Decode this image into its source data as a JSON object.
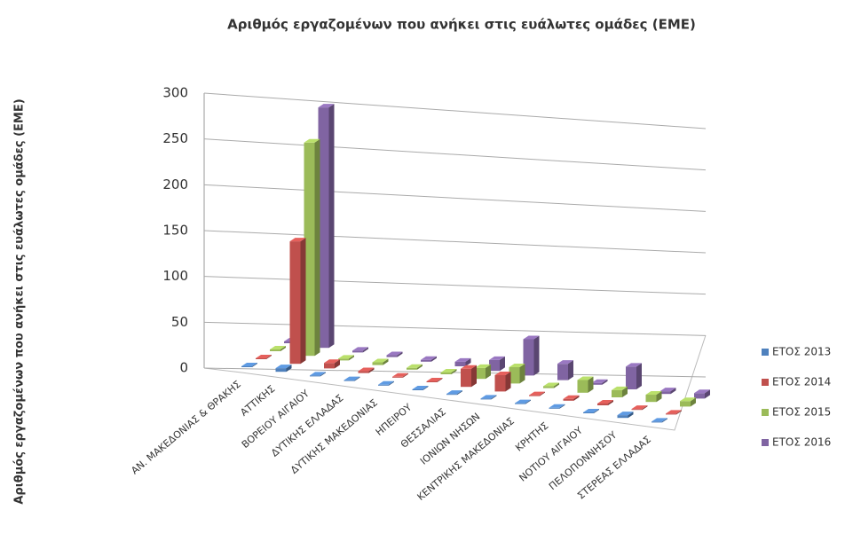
{
  "chart_data": {
    "type": "bar3d",
    "title": "Αριθμός εργαζομένων που ανήκει στις ευάλωτες ομάδες (ΕΜΕ)",
    "y_label": "Αριθμός εργαζομένων που ανήκει στις ευάλωτες ομάδες (ΕΜΕ)",
    "categories": [
      "ΑΝ. ΜΑΚΕΔΟΝΙΑΣ & ΘΡΑΚΗΣ",
      "ΑΤΤΙΚΗΣ",
      "ΒΟΡΕΙΟΥ ΑΙΓΑΙΟΥ",
      "ΔΥΤΙΚΗΣ ΕΛΛΑΔΑΣ",
      "ΔΥΤΙΚΗΣ ΜΑΚΕΔΟΝΙΑΣ",
      "ΗΠΕΙΡΟΥ",
      "ΘΕΣΣΑΛΙΑΣ",
      "ΙΟΝΙΩΝ ΝΗΣΩΝ",
      "ΚΕΝΤΡΙΚΗΣ ΜΑΚΕΔΟΝΙΑΣ",
      "ΚΡΗΤΗΣ",
      "ΝΟΤΙΟΥ ΑΙΓΑΙΟΥ",
      "ΠΕΛΟΠΟΝΝΗΣΟΥ",
      "ΣΤΕΡΕΑΣ ΕΛΛΑΔΑΣ"
    ],
    "series": [
      {
        "name": "ΕΤΟΣ 2013",
        "color": "#4f81bd",
        "values": [
          1,
          4,
          1,
          1,
          1,
          1,
          1,
          1,
          1,
          1,
          1,
          3,
          1
        ]
      },
      {
        "name": "ΕΤΟΣ 2014",
        "color": "#c0504d",
        "values": [
          1,
          135,
          6,
          2,
          1,
          1,
          20,
          18,
          1,
          2,
          2,
          1,
          1
        ]
      },
      {
        "name": "ΕΤΟΣ 2015",
        "color": "#9bbb59",
        "values": [
          2,
          235,
          2,
          3,
          2,
          2,
          12,
          18,
          2,
          14,
          8,
          8,
          6
        ]
      },
      {
        "name": "ΕΤΟΣ 2016",
        "color": "#8064a2",
        "values": [
          2,
          265,
          2,
          2,
          2,
          5,
          12,
          40,
          18,
          2,
          25,
          3,
          6
        ]
      }
    ],
    "ylim": [
      0,
      300
    ],
    "yticks": [
      0,
      50,
      100,
      150,
      200,
      250,
      300
    ],
    "grid": true,
    "legend": "right"
  }
}
